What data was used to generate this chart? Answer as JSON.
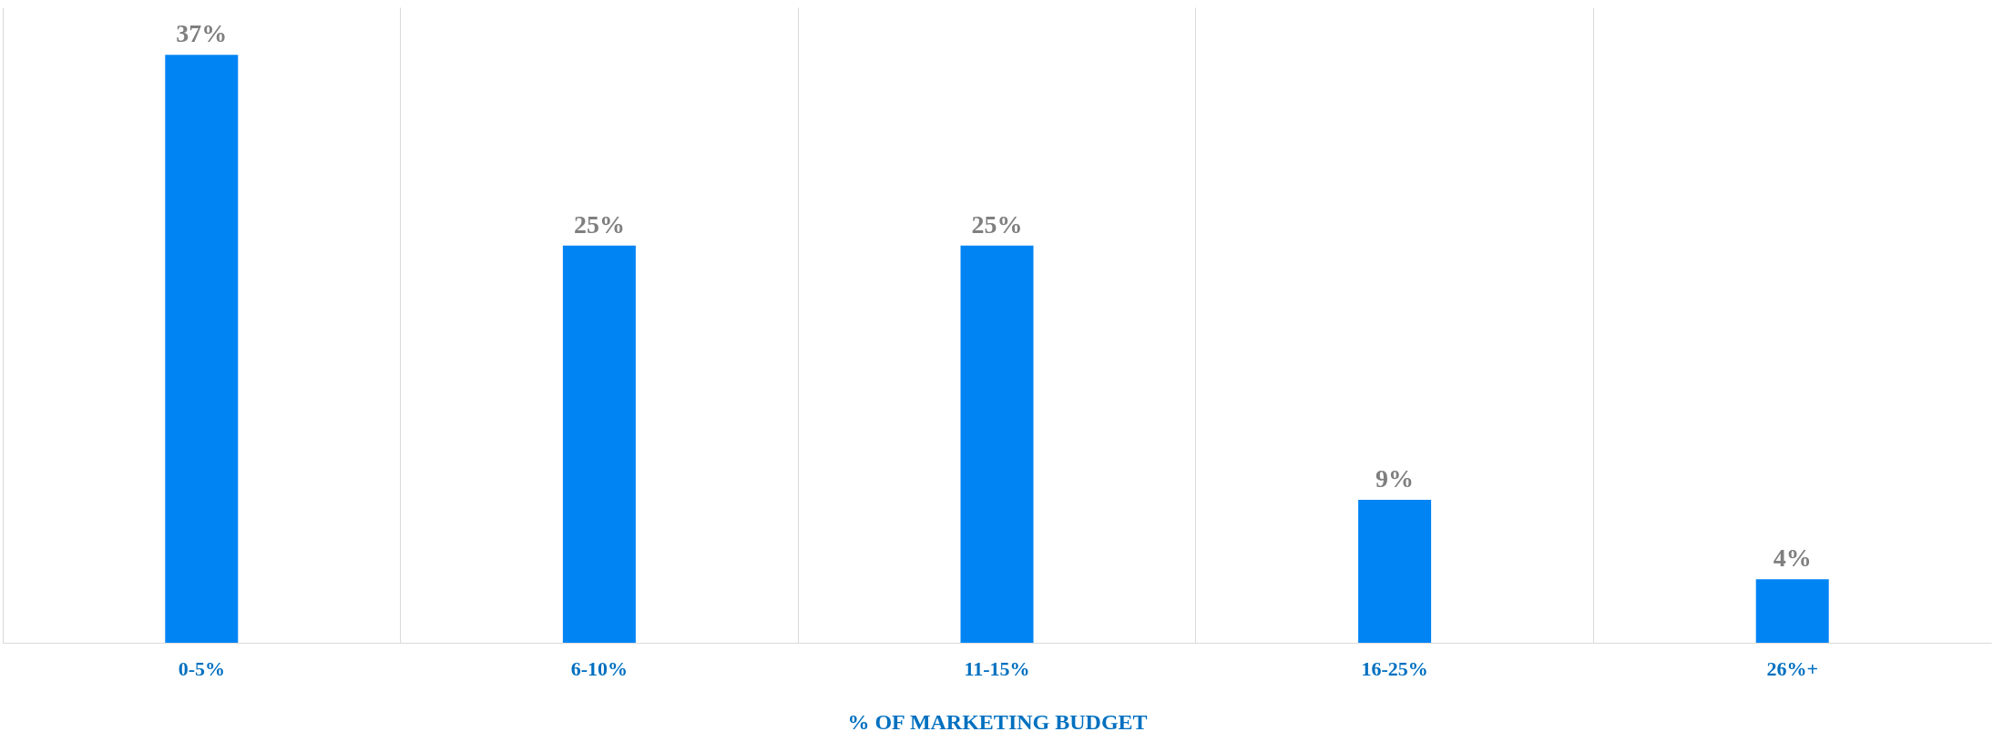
{
  "chart_data": {
    "type": "bar",
    "xlabel": "% OF MARKETING BUDGET",
    "categories": [
      "0-5%",
      "6-10%",
      "11-15%",
      "16-25%",
      "26%+"
    ],
    "values": [
      37,
      25,
      25,
      9,
      4
    ],
    "value_labels": [
      "37%",
      "25%",
      "25%",
      "9%",
      "4%"
    ],
    "color": "#0084f4",
    "grid": "x",
    "tick_labels": "x"
  }
}
